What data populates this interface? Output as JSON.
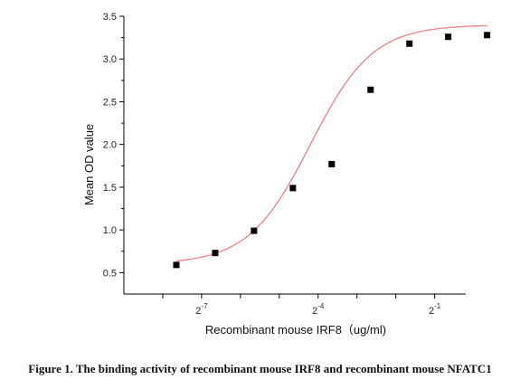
{
  "chart_data": {
    "type": "scatter",
    "xlabel": "Recombinant mouse IRF8（ug/ml)",
    "ylabel": "Mean OD value",
    "x_scale": "log2",
    "xlim": [
      -9,
      -0.2
    ],
    "ylim": [
      0.25,
      3.5
    ],
    "x_tick_labels": [
      {
        "value": -7,
        "base": "2",
        "exp": "-7"
      },
      {
        "value": -4,
        "base": "2",
        "exp": "-4"
      },
      {
        "value": -1,
        "base": "2",
        "exp": "-1"
      }
    ],
    "x_minor_ticks": [
      -8,
      -6,
      -5,
      -3,
      -2,
      0
    ],
    "y_ticks": [
      0.5,
      1.0,
      1.5,
      2.0,
      2.5,
      3.0,
      3.5
    ],
    "y_tick_labels": [
      "0.5",
      "1.0",
      "1.5",
      "2.0",
      "2.5",
      "3.0",
      "3.5"
    ],
    "series": [
      {
        "marker": "square",
        "color": "#000000",
        "x": [
          -7.65,
          -6.65,
          -5.65,
          -4.65,
          -3.65,
          -2.65,
          -1.65,
          -0.65,
          0.35
        ],
        "y": [
          0.59,
          0.73,
          0.99,
          1.49,
          1.77,
          2.64,
          3.18,
          3.26,
          3.28
        ]
      }
    ],
    "fit_curve": {
      "type": "4PL",
      "color": "#f08080",
      "bottom": 0.6,
      "top": 3.4,
      "x_mid": -4.2,
      "slope": 1.25,
      "x_range": [
        -7.65,
        0.35
      ]
    }
  },
  "caption": "Figure 1. The binding activity of recombinant mouse IRF8 and recombinant mouse NFATC1"
}
